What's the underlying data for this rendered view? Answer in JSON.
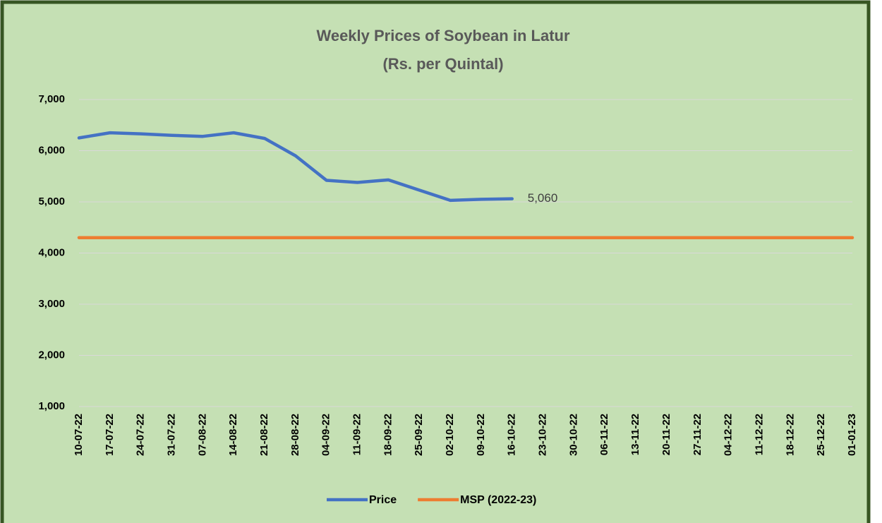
{
  "chart_data": {
    "type": "line",
    "title": "Weekly Prices of Soybean in Latur",
    "subtitle": "(Rs. per Quintal)",
    "categories": [
      "10-07-22",
      "17-07-22",
      "24-07-22",
      "31-07-22",
      "07-08-22",
      "14-08-22",
      "21-08-22",
      "28-08-22",
      "04-09-22",
      "11-09-22",
      "18-09-22",
      "25-09-22",
      "02-10-22",
      "09-10-22",
      "16-10-22",
      "23-10-22",
      "30-10-22",
      "06-11-22",
      "13-11-22",
      "20-11-22",
      "27-11-22",
      "04-12-22",
      "11-12-22",
      "18-12-22",
      "25-12-22",
      "01-01-23"
    ],
    "series": [
      {
        "name": "Price",
        "color": "#4472c4",
        "values": [
          6250,
          6350,
          6330,
          6300,
          6280,
          6350,
          6240,
          5900,
          5420,
          5380,
          5430,
          5230,
          5030,
          5050,
          5060,
          null,
          null,
          null,
          null,
          null,
          null,
          null,
          null,
          null,
          null,
          null
        ],
        "value_labels": [
          null,
          null,
          null,
          null,
          null,
          null,
          null,
          null,
          null,
          null,
          null,
          null,
          null,
          null,
          "5,060",
          null,
          null,
          null,
          null,
          null,
          null,
          null,
          null,
          null,
          null,
          null
        ]
      },
      {
        "name": "MSP (2022-23)",
        "color": "#ed7d31",
        "values": [
          4300,
          4300,
          4300,
          4300,
          4300,
          4300,
          4300,
          4300,
          4300,
          4300,
          4300,
          4300,
          4300,
          4300,
          4300,
          4300,
          4300,
          4300,
          4300,
          4300,
          4300,
          4300,
          4300,
          4300,
          4300,
          4300
        ]
      }
    ],
    "ylim": [
      1000,
      7000
    ],
    "yticks": [
      {
        "value": 1000,
        "label": "1,000"
      },
      {
        "value": 2000,
        "label": "2,000"
      },
      {
        "value": 3000,
        "label": "3,000"
      },
      {
        "value": 4000,
        "label": "4,000"
      },
      {
        "value": 5000,
        "label": "5,000"
      },
      {
        "value": 6000,
        "label": "6,000"
      },
      {
        "value": 7000,
        "label": "7,000"
      }
    ],
    "grid": true,
    "legend": "bottom"
  }
}
